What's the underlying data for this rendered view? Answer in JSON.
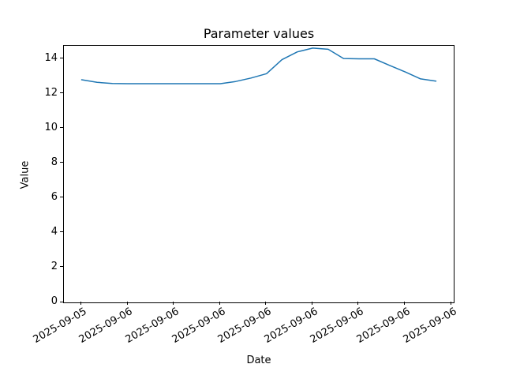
{
  "chart_data": {
    "type": "line",
    "title": "Parameter values",
    "xlabel": "Date",
    "ylabel": "Value",
    "grid": false,
    "legend": null,
    "line_color": "#1f77b4",
    "line_width": 1.5,
    "frame_color": "#000000",
    "background_color": "#ffffff",
    "tick_label_rotation_deg": 30,
    "x_hours": [
      0,
      1,
      2,
      3,
      4,
      5,
      6,
      7,
      8,
      9,
      10,
      11,
      12,
      13,
      14,
      15,
      16,
      17,
      18,
      19,
      20,
      21,
      22,
      23
    ],
    "values": [
      12.8,
      12.65,
      12.58,
      12.57,
      12.57,
      12.57,
      12.57,
      12.57,
      12.57,
      12.57,
      12.7,
      12.9,
      13.15,
      13.95,
      14.4,
      14.62,
      14.55,
      14.02,
      14.0,
      14.0,
      13.62,
      13.25,
      12.85,
      12.72
    ],
    "series": [
      {
        "name": "parameter-values",
        "values_ref": "values"
      }
    ],
    "x_ticks": {
      "positions_hours": [
        0,
        3,
        6,
        9,
        12,
        15,
        18,
        21,
        24
      ],
      "labels": [
        "2025-09-05",
        "2025-09-06",
        "2025-09-06",
        "2025-09-06",
        "2025-09-06",
        "2025-09-06",
        "2025-09-06",
        "2025-09-06",
        "2025-09-06"
      ]
    },
    "y_ticks": [
      0,
      2,
      4,
      6,
      8,
      10,
      12,
      14
    ],
    "xlim_hours": [
      -1.15,
      24.15
    ],
    "ylim": [
      0,
      14.75
    ]
  }
}
